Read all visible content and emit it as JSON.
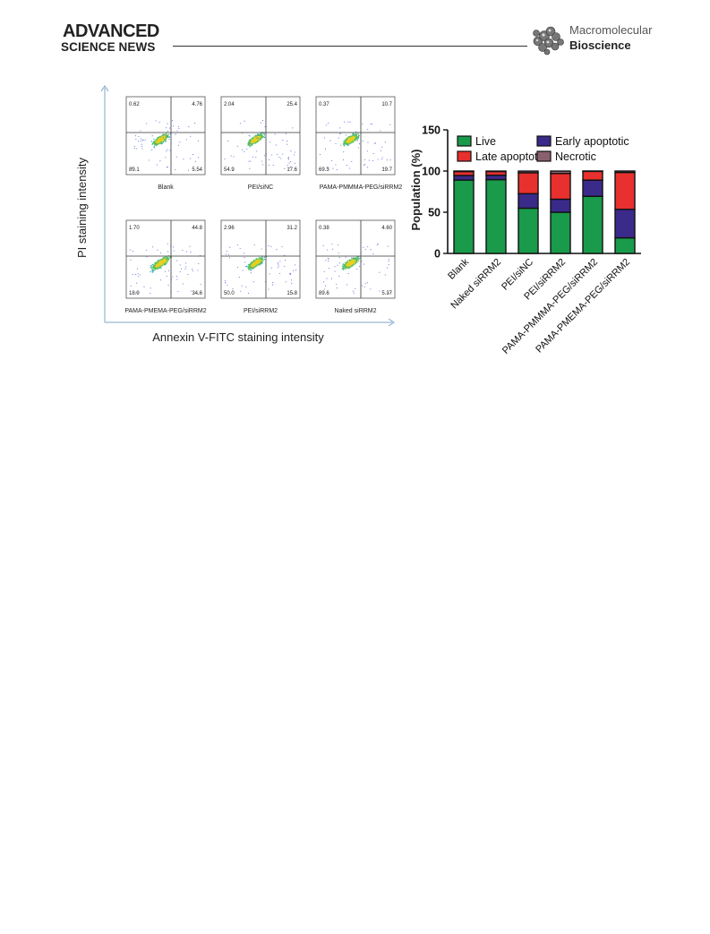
{
  "header": {
    "publisher_top": "ADVANCED",
    "publisher_bottom": "SCIENCE NEWS",
    "journal_line1": "Macromolecular",
    "journal_line2": "Bioscience",
    "journal_icon": "molecule-logo-icon"
  },
  "flow": {
    "y_axis_label": "PI staining intensity",
    "x_axis_label": "Annexin V-FITC staining intensity",
    "panels": [
      {
        "name": "Blank",
        "tl": "0.62",
        "tr": "4.76",
        "bl": "89.1",
        "br": "5.54"
      },
      {
        "name": "PEI/siNC",
        "tl": "2.04",
        "tr": "25.4",
        "bl": "54.9",
        "br": "17.6"
      },
      {
        "name": "PAMA-PMMMA-PEG/siRRM2",
        "tl": "0.37",
        "tr": "10.7",
        "bl": "69.3",
        "br": "19.7"
      },
      {
        "name": "PAMA-PMEMA-PEG/siRRM2",
        "tl": "1.70",
        "tr": "44.8",
        "bl": "18.9",
        "br": "34.6"
      },
      {
        "name": "PEI/siRRM2",
        "tl": "2.96",
        "tr": "31.2",
        "bl": "50.0",
        "br": "15.8"
      },
      {
        "name": "Naked siRRM2",
        "tl": "0.38",
        "tr": "4.60",
        "bl": "89.6",
        "br": "5.37"
      }
    ]
  },
  "chart_data": {
    "type": "bar",
    "stacked": true,
    "title": "",
    "xlabel": "",
    "ylabel": "Population (%)",
    "ylim": [
      0,
      150
    ],
    "yticks": [
      "0",
      "50",
      "100",
      "150"
    ],
    "categories": [
      "Blank",
      "Naked siRRM2",
      "PEI/siNC",
      "PEI/siRRM2",
      "PAMA-PMMMA-PEG/siRRM2",
      "PAMA-PMEMA-PEG/siRRM2"
    ],
    "series": [
      {
        "name": "Live",
        "color": "#1a9a4b",
        "values": [
          89.1,
          89.6,
          54.9,
          50.0,
          69.3,
          18.9
        ]
      },
      {
        "name": "Early apoptotic",
        "color": "#3a2a8a",
        "values": [
          5.54,
          5.37,
          17.6,
          15.8,
          19.7,
          34.6
        ]
      },
      {
        "name": "Late apoptotic",
        "color": "#e8302e",
        "values": [
          4.76,
          4.6,
          25.4,
          31.2,
          10.7,
          44.8
        ]
      },
      {
        "name": "Necrotic",
        "color": "#8a6070",
        "values": [
          0.62,
          0.38,
          2.04,
          2.96,
          0.37,
          1.7
        ]
      }
    ],
    "legend_position": "top"
  }
}
